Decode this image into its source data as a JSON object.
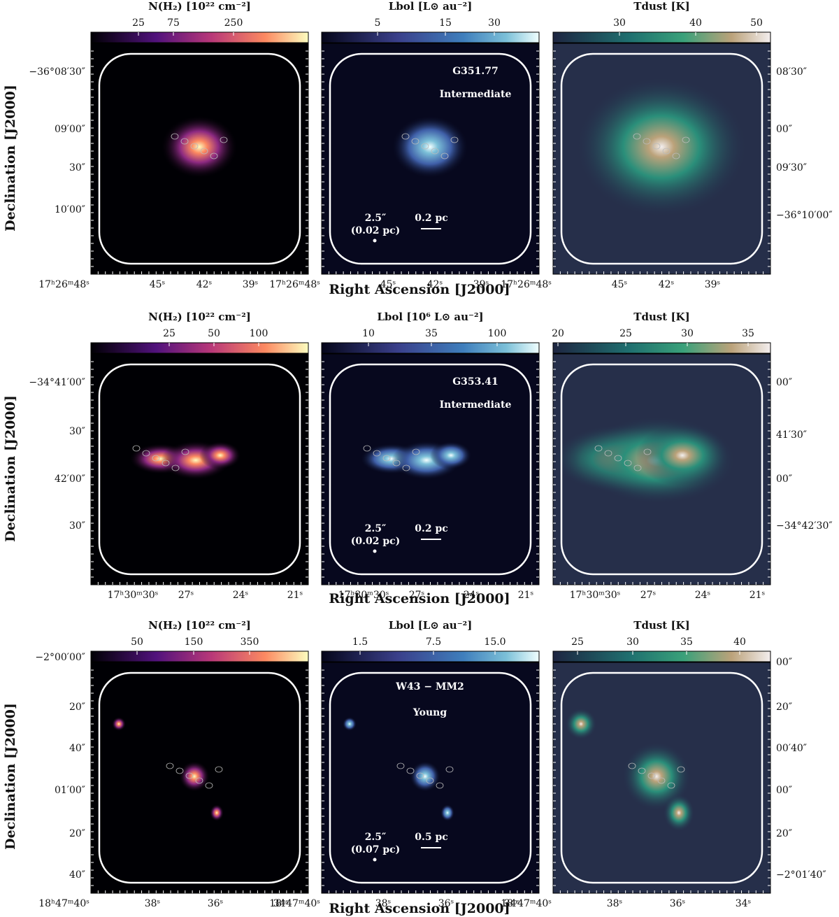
{
  "x_axis_title": "Right Ascension [J2000]",
  "y_axis_title": "Declination [J2000]",
  "rows": [
    {
      "panels": [
        {
          "colorbar_label": "N(H₂) [10²² cm⁻²]",
          "colorbar_ticks": [
            "25",
            "75",
            "250"
          ]
        },
        {
          "colorbar_label": "Lbol [L⊙ au⁻²]",
          "colorbar_ticks": [
            "5",
            "15",
            "30"
          ]
        },
        {
          "colorbar_label": "Tdust [K]",
          "colorbar_ticks": [
            "30",
            "40",
            "50"
          ]
        }
      ],
      "source": "G351.77",
      "stage": "Intermediate",
      "beam": "2.5″",
      "beam_size": "(0.02 pc)",
      "scale_bar": "0.2 pc",
      "ra_ticks": [
        "17ʰ26ᵐ48ˢ",
        "45ˢ",
        "42ˢ",
        "39ˢ"
      ],
      "dec_ticks_left": [
        "−36°08′30″",
        "09′00″",
        "30″",
        "10′00″"
      ],
      "dec_ticks_right": [
        "08′30″",
        "00″",
        "09′30″",
        "−36°10′00″"
      ]
    },
    {
      "panels": [
        {
          "colorbar_label": "N(H₂) [10²² cm⁻²]",
          "colorbar_ticks": [
            "25",
            "50",
            "100"
          ]
        },
        {
          "colorbar_label": "Lbol [10⁶ L⊙ au⁻²]",
          "colorbar_ticks": [
            "10",
            "35",
            "100"
          ]
        },
        {
          "colorbar_label": "Tdust [K]",
          "colorbar_ticks": [
            "20",
            "25",
            "30",
            "35"
          ]
        }
      ],
      "source": "G353.41",
      "stage": "Intermediate",
      "beam": "2.5″",
      "beam_size": "(0.02 pc)",
      "scale_bar": "0.2 pc",
      "ra_ticks": [
        "17ʰ30ᵐ30ˢ",
        "27ˢ",
        "24ˢ",
        "21ˢ"
      ],
      "dec_ticks_left": [
        "−34°41′00″",
        "30″",
        "42′00″",
        "30″"
      ],
      "dec_ticks_right": [
        "00″",
        "41′30″",
        "00″",
        "−34°42′30″"
      ]
    },
    {
      "panels": [
        {
          "colorbar_label": "N(H₂) [10²² cm⁻²]",
          "colorbar_ticks": [
            "50",
            "150",
            "350"
          ]
        },
        {
          "colorbar_label": "Lbol [L⊙ au⁻²]",
          "colorbar_ticks": [
            "1.5",
            "7.5",
            "15.0"
          ]
        },
        {
          "colorbar_label": "Tdust [K]",
          "colorbar_ticks": [
            "25",
            "30",
            "35",
            "40"
          ]
        }
      ],
      "source": "W43 − MM2",
      "stage": "Young",
      "beam": "2.5″",
      "beam_size": "(0.07 pc)",
      "scale_bar": "0.5 pc",
      "ra_ticks": [
        "18ʰ47ᵐ40ˢ",
        "38ˢ",
        "36ˢ",
        "34ˢ"
      ],
      "dec_ticks_left": [
        "−2°00′00″",
        "20″",
        "40″",
        "01′00″",
        "20″",
        "40″"
      ],
      "dec_ticks_right": [
        "00″",
        "20″",
        "00′40″",
        "00″",
        "20″",
        "−2°01′40″"
      ]
    }
  ]
}
